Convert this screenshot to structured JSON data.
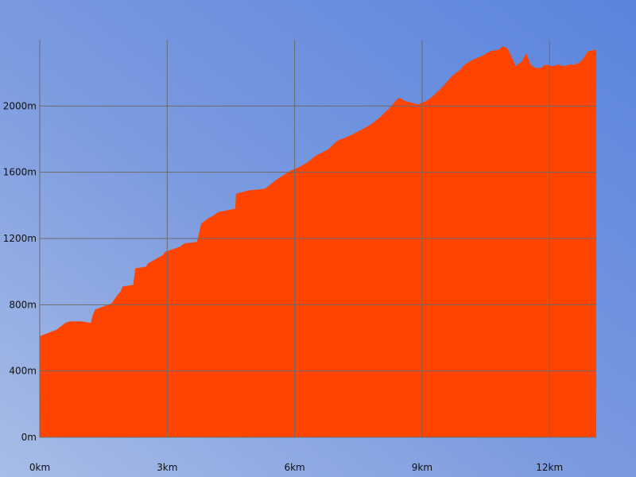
{
  "chart_data": {
    "type": "area",
    "title": "",
    "xlabel": "",
    "ylabel": "",
    "x_unit": "km",
    "y_unit": "m",
    "xlim": [
      0,
      13.1
    ],
    "ylim": [
      0,
      2400
    ],
    "x_ticks": [
      0,
      3,
      6,
      9,
      12
    ],
    "x_tick_labels": [
      "0km",
      "3km",
      "6km",
      "9km",
      "12km"
    ],
    "y_ticks": [
      0,
      400,
      800,
      1200,
      1600,
      2000
    ],
    "y_tick_labels": [
      "0m",
      "400m",
      "800m",
      "1200m",
      "1600m",
      "2000m"
    ],
    "grid": true,
    "legend": "none",
    "fill_color": "#ff4400",
    "series": [
      {
        "x": [
          0,
          0.1,
          0.2,
          0.4,
          0.5,
          0.6,
          0.7,
          0.8,
          1.0,
          1.2,
          1.25,
          1.3,
          1.5,
          1.7,
          1.8,
          1.9,
          1.95,
          2.2,
          2.25,
          2.5,
          2.55,
          2.9,
          2.95,
          3.3,
          3.4,
          3.7,
          3.8,
          3.95,
          4.1,
          4.2,
          4.4,
          4.6,
          4.62,
          4.9,
          5.3,
          5.4,
          5.6,
          5.9,
          6.1,
          6.3,
          6.5,
          6.8,
          7.0,
          7.3,
          7.6,
          7.8,
          8.0,
          8.2,
          8.45,
          8.6,
          8.9,
          9.1,
          9.3,
          9.5,
          9.7,
          9.9,
          10.0,
          10.2,
          10.4,
          10.6,
          10.8,
          10.9,
          11.0,
          11.1,
          11.2,
          11.35,
          11.45,
          11.55,
          11.65,
          11.8,
          11.9,
          12.05,
          12.2,
          12.35,
          12.45,
          12.6,
          12.75,
          12.9,
          13.1
        ],
        "y": [
          610,
          620,
          630,
          650,
          670,
          690,
          700,
          700,
          700,
          690,
          740,
          770,
          790,
          810,
          850,
          880,
          910,
          920,
          1020,
          1030,
          1050,
          1100,
          1120,
          1150,
          1170,
          1180,
          1290,
          1320,
          1340,
          1360,
          1370,
          1380,
          1470,
          1490,
          1500,
          1520,
          1560,
          1610,
          1630,
          1660,
          1700,
          1740,
          1790,
          1820,
          1860,
          1890,
          1930,
          1980,
          2050,
          2030,
          2010,
          2030,
          2070,
          2120,
          2180,
          2220,
          2250,
          2280,
          2300,
          2330,
          2340,
          2360,
          2350,
          2300,
          2240,
          2270,
          2320,
          2250,
          2230,
          2230,
          2250,
          2240,
          2250,
          2240,
          2250,
          2250,
          2270,
          2330,
          2340
        ]
      }
    ]
  }
}
